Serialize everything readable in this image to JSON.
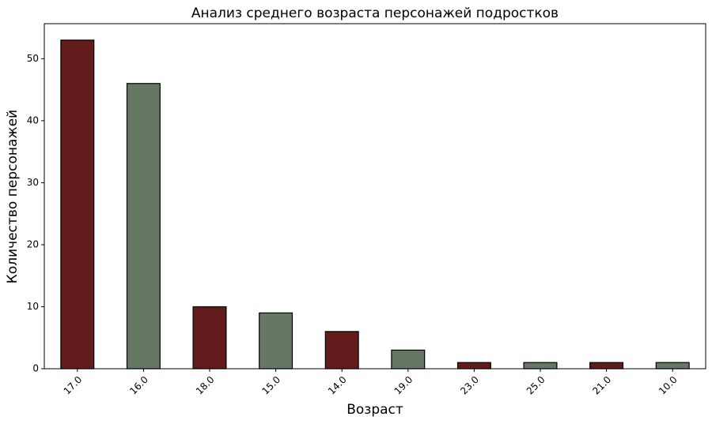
{
  "chart_data": {
    "type": "bar",
    "title": "Анализ среднего возраста персонажей подростков",
    "xlabel": "Возраст",
    "ylabel": "Количество персонажей",
    "categories": [
      "17.0",
      "16.0",
      "18.0",
      "15.0",
      "14.0",
      "19.0",
      "23.0",
      "25.0",
      "21.0",
      "10.0"
    ],
    "values": [
      53,
      46,
      10,
      9,
      6,
      3,
      1,
      1,
      1,
      1
    ],
    "colors": [
      "#621c1c",
      "#667766",
      "#621c1c",
      "#667766",
      "#621c1c",
      "#667766",
      "#621c1c",
      "#667766",
      "#621c1c",
      "#667766"
    ],
    "ylim": [
      0,
      55.65
    ],
    "yticks": [
      0,
      10,
      20,
      30,
      40,
      50
    ],
    "grid": false
  }
}
